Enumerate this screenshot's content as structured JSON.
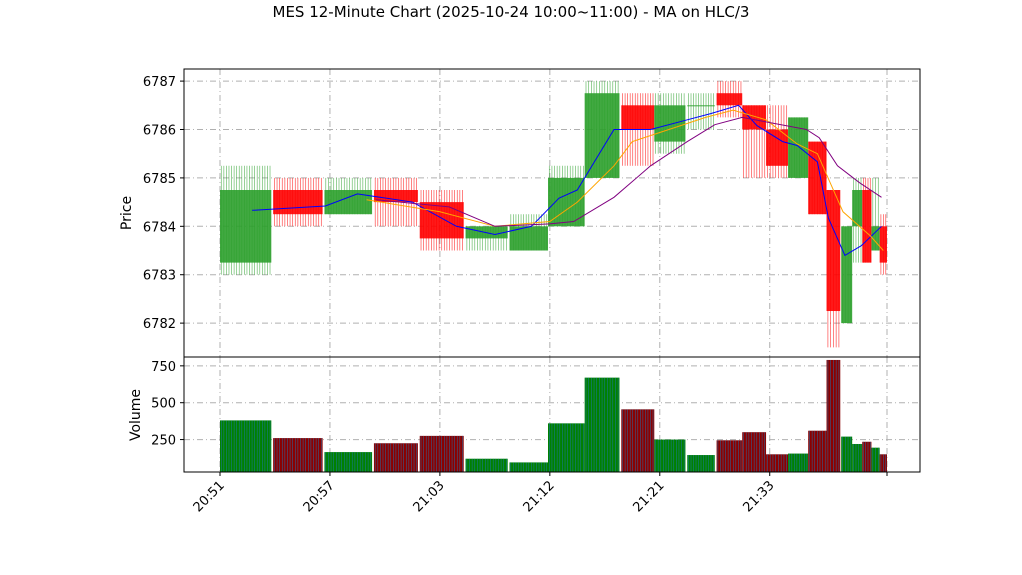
{
  "chart_data": {
    "type": "candlestick",
    "title": "MES 12-Minute Chart (2025-10-24 10:00~11:00) - MA on HLC/3",
    "price_panel": {
      "ylabel": "Price",
      "ylim": [
        6781.3,
        6787.25
      ],
      "yticks": [
        6782,
        6783,
        6784,
        6785,
        6786,
        6787
      ],
      "grid": true
    },
    "volume_panel": {
      "ylabel": "Volume",
      "ylim": [
        30,
        810
      ],
      "yticks": [
        250,
        500,
        750
      ],
      "grid": true
    },
    "x_labels": [
      "20:51",
      "20:57",
      "21:03",
      "21:12",
      "21:21",
      "21:33"
    ],
    "x_range": [
      0,
      36.4
    ],
    "x_label_positions": [
      0,
      6,
      12,
      18,
      24,
      30
    ],
    "candles": [
      {
        "t": 0,
        "w": 2.8,
        "open": 6783.25,
        "high": 6785.25,
        "low": 6783.0,
        "close": 6784.75,
        "volume": 380
      },
      {
        "t": 2.9,
        "w": 2.7,
        "open": 6784.75,
        "high": 6785.0,
        "low": 6784.0,
        "close": 6784.25,
        "volume": 260
      },
      {
        "t": 5.7,
        "w": 2.6,
        "open": 6784.25,
        "high": 6785.0,
        "low": 6784.25,
        "close": 6784.75,
        "volume": 165
      },
      {
        "t": 8.4,
        "w": 2.4,
        "open": 6784.75,
        "high": 6785.0,
        "low": 6784.0,
        "close": 6784.5,
        "volume": 225
      },
      {
        "t": 10.9,
        "w": 2.4,
        "open": 6784.5,
        "high": 6784.75,
        "low": 6783.5,
        "close": 6783.75,
        "volume": 275
      },
      {
        "t": 13.4,
        "w": 2.3,
        "open": 6783.75,
        "high": 6784.0,
        "low": 6783.5,
        "close": 6784.0,
        "volume": 120
      },
      {
        "t": 15.8,
        "w": 2.1,
        "open": 6783.5,
        "high": 6784.25,
        "low": 6783.5,
        "close": 6784.0,
        "volume": 95
      },
      {
        "t": 17.9,
        "w": 2.0,
        "open": 6784.0,
        "high": 6785.25,
        "low": 6784.0,
        "close": 6785.0,
        "volume": 360
      },
      {
        "t": 19.9,
        "w": 1.9,
        "open": 6785.0,
        "high": 6787.0,
        "low": 6785.0,
        "close": 6786.75,
        "volume": 670
      },
      {
        "t": 21.9,
        "w": 1.8,
        "open": 6786.5,
        "high": 6786.75,
        "low": 6785.25,
        "close": 6786.0,
        "volume": 455
      },
      {
        "t": 23.7,
        "w": 1.7,
        "open": 6785.75,
        "high": 6786.75,
        "low": 6785.5,
        "close": 6786.5,
        "volume": 250
      },
      {
        "t": 25.5,
        "w": 1.5,
        "open": 6786.5,
        "high": 6786.75,
        "low": 6786.0,
        "close": 6786.5,
        "volume": 145
      },
      {
        "t": 27.1,
        "w": 1.4,
        "open": 6786.75,
        "high": 6787.0,
        "low": 6786.25,
        "close": 6786.5,
        "volume": 245
      },
      {
        "t": 28.5,
        "w": 1.3,
        "open": 6786.5,
        "high": 6786.5,
        "low": 6785.0,
        "close": 6786.0,
        "volume": 300
      },
      {
        "t": 29.8,
        "w": 1.2,
        "open": 6786.0,
        "high": 6786.5,
        "low": 6785.0,
        "close": 6785.25,
        "volume": 150
      },
      {
        "t": 31.0,
        "w": 1.1,
        "open": 6785.0,
        "high": 6786.25,
        "low": 6785.0,
        "close": 6786.25,
        "volume": 155
      },
      {
        "t": 32.1,
        "w": 1.0,
        "open": 6785.75,
        "high": 6785.75,
        "low": 6784.25,
        "close": 6784.25,
        "volume": 310
      },
      {
        "t": 33.1,
        "w": 0.75,
        "open": 6784.75,
        "high": 6784.75,
        "low": 6781.5,
        "close": 6782.25,
        "volume": 790
      },
      {
        "t": 33.9,
        "w": 0.6,
        "open": 6782.0,
        "high": 6784.0,
        "low": 6782.0,
        "close": 6784.0,
        "volume": 270
      },
      {
        "t": 34.5,
        "w": 0.55,
        "open": 6784.0,
        "high": 6785.0,
        "low": 6783.25,
        "close": 6784.75,
        "volume": 220
      },
      {
        "t": 35.05,
        "w": 0.5,
        "open": 6784.75,
        "high": 6785.0,
        "low": 6783.25,
        "close": 6783.25,
        "volume": 235
      },
      {
        "t": 35.55,
        "w": 0.45,
        "open": 6783.5,
        "high": 6785.0,
        "low": 6783.5,
        "close": 6784.0,
        "volume": 195
      },
      {
        "t": 36.0,
        "w": 0.4,
        "open": 6784.0,
        "high": 6784.25,
        "low": 6783.0,
        "close": 6783.25,
        "volume": 150
      }
    ],
    "moving_averages": [
      {
        "color": "#0000ff",
        "points": [
          [
            1.75,
            6784.33
          ],
          [
            5.75,
            6784.42
          ],
          [
            7.5,
            6784.67
          ],
          [
            10.5,
            6784.5
          ],
          [
            12.9,
            6784.0
          ],
          [
            15.0,
            6783.83
          ],
          [
            17.0,
            6784.0
          ],
          [
            18.5,
            6784.58
          ],
          [
            19.5,
            6784.75
          ],
          [
            21.5,
            6786.0
          ],
          [
            23.5,
            6786.0
          ],
          [
            25.5,
            6786.2
          ],
          [
            26.8,
            6786.33
          ],
          [
            28.3,
            6786.5
          ],
          [
            29.3,
            6786.08
          ],
          [
            30.7,
            6785.75
          ],
          [
            31.5,
            6785.67
          ],
          [
            32.6,
            6785.33
          ],
          [
            33.2,
            6784.17
          ],
          [
            34.1,
            6783.4
          ],
          [
            35.0,
            6783.6
          ],
          [
            36.1,
            6784.0
          ]
        ]
      },
      {
        "color": "#ffa500",
        "points": [
          [
            8.0,
            6784.55
          ],
          [
            12.0,
            6784.3
          ],
          [
            15.0,
            6784.0
          ],
          [
            18.0,
            6784.1
          ],
          [
            19.5,
            6784.5
          ],
          [
            21.5,
            6785.25
          ],
          [
            22.5,
            6785.75
          ],
          [
            24.5,
            6786.0
          ],
          [
            26.5,
            6786.25
          ],
          [
            28.0,
            6786.4
          ],
          [
            29.8,
            6786.2
          ],
          [
            31.5,
            6785.7
          ],
          [
            32.6,
            6785.5
          ],
          [
            34.0,
            6784.3
          ],
          [
            35.5,
            6783.8
          ],
          [
            36.2,
            6783.5
          ]
        ]
      },
      {
        "color": "#800080",
        "points": [
          [
            8.5,
            6784.55
          ],
          [
            12.5,
            6784.4
          ],
          [
            15.0,
            6784.0
          ],
          [
            18.0,
            6784.05
          ],
          [
            19.3,
            6784.1
          ],
          [
            21.5,
            6784.6
          ],
          [
            23.5,
            6785.25
          ],
          [
            25.5,
            6785.75
          ],
          [
            27.0,
            6786.1
          ],
          [
            28.5,
            6786.25
          ],
          [
            32.0,
            6786.0
          ],
          [
            32.7,
            6785.83
          ],
          [
            33.7,
            6785.25
          ],
          [
            34.9,
            6784.9
          ],
          [
            36.1,
            6784.6
          ]
        ]
      }
    ],
    "colors": {
      "up": "#2ca02c",
      "down": "#ff0000",
      "vol_up": "#008000",
      "vol_down": "#8b0000"
    }
  }
}
